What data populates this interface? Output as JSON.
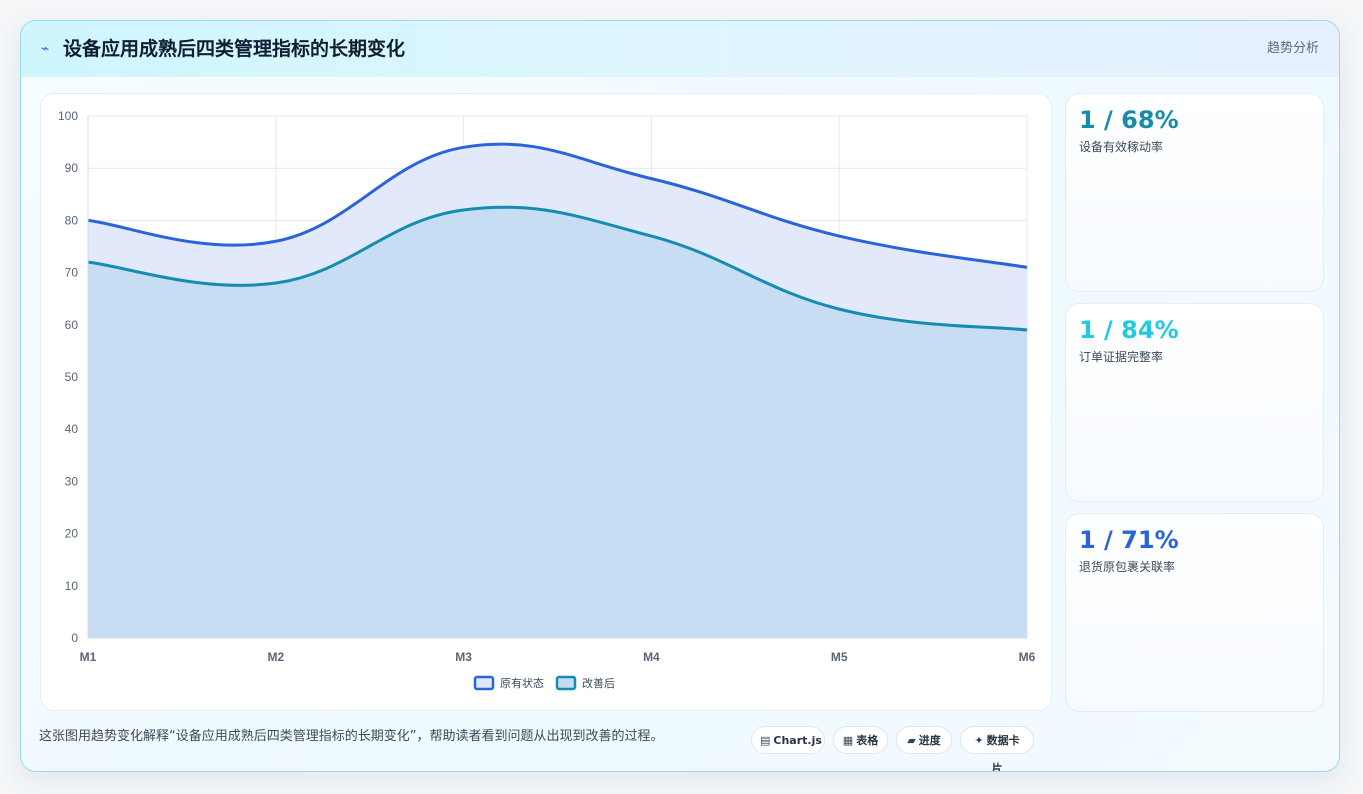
{
  "header": {
    "title": "设备应用成熟后四类管理指标的长期变化",
    "tag": "趋势分析"
  },
  "colors": {
    "series_original": "#2b63d9",
    "series_improved": "#168db0",
    "fill_original": "#dfe8fb",
    "fill_improved": "#c3dcf2"
  },
  "chart_data": {
    "type": "area",
    "categories": [
      "M1",
      "M2",
      "M3",
      "M4",
      "M5",
      "M6"
    ],
    "series": [
      {
        "name": "原有状态",
        "values": [
          80,
          76,
          94,
          88,
          77,
          71
        ]
      },
      {
        "name": "改善后",
        "values": [
          72,
          68,
          82,
          77,
          63,
          59
        ]
      }
    ],
    "ylim": [
      0,
      100
    ],
    "yticks": [
      0,
      10,
      20,
      30,
      40,
      50,
      60,
      70,
      80,
      90,
      100
    ],
    "grid": true,
    "legend": "bottom"
  },
  "stats": [
    {
      "value": "1 / 68%",
      "label": "设备有效稼动率",
      "color": "#168da6"
    },
    {
      "value": "1 / 84%",
      "label": "订单证据完整率",
      "color": "#22c9e0"
    },
    {
      "value": "1 / 71%",
      "label": "退货原包裹关联率",
      "color": "#2b63d9"
    }
  ],
  "footer": {
    "caption": "这张图用趋势变化解释“设备应用成熟后四类管理指标的长期变化”，帮助读者看到问题从出现到改善的过程。",
    "chips": [
      {
        "icon": "▤",
        "icon_name": "chart-icon",
        "label": "Chart.js"
      },
      {
        "icon": "▦",
        "icon_name": "table-icon",
        "label": "表格"
      },
      {
        "icon": "▰",
        "icon_name": "progress-icon",
        "label": "进度"
      },
      {
        "icon": "✦",
        "icon_name": "card-icon",
        "label": "数据卡片"
      }
    ]
  }
}
